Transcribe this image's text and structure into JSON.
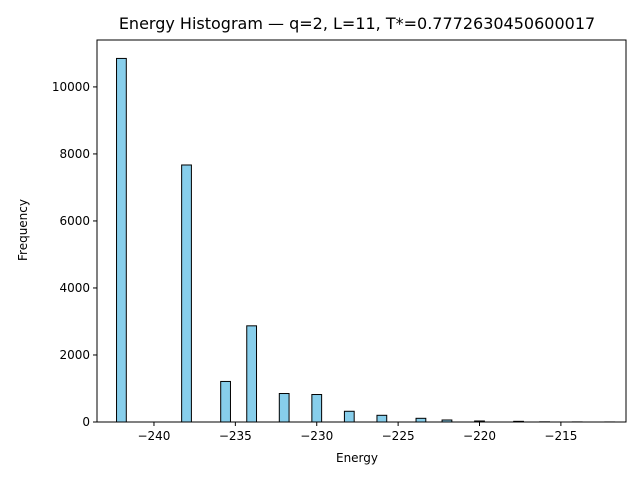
{
  "chart_data": {
    "type": "bar",
    "title": "Energy Histogram — q=2, L=11, T*=0.7772630450600017",
    "xlabel": "Energy",
    "ylabel": "Frequency",
    "xlim": [
      -243.5,
      -211
    ],
    "ylim": [
      0,
      11400
    ],
    "bar_color": "#87ceeb",
    "edge_color": "#000000",
    "bin_width": 0.6,
    "x_ticks": [
      {
        "value": -240,
        "label": "−240"
      },
      {
        "value": -235,
        "label": "−235"
      },
      {
        "value": -230,
        "label": "−230"
      },
      {
        "value": -225,
        "label": "−225"
      },
      {
        "value": -220,
        "label": "−220"
      },
      {
        "value": -215,
        "label": "−215"
      }
    ],
    "y_ticks": [
      {
        "value": 0,
        "label": "0"
      },
      {
        "value": 2000,
        "label": "2000"
      },
      {
        "value": 4000,
        "label": "4000"
      },
      {
        "value": 6000,
        "label": "6000"
      },
      {
        "value": 8000,
        "label": "8000"
      },
      {
        "value": 10000,
        "label": "10000"
      }
    ],
    "bins": [
      {
        "x": -242,
        "value": 10850
      },
      {
        "x": -238,
        "value": 7670
      },
      {
        "x": -235.6,
        "value": 1210
      },
      {
        "x": -234,
        "value": 2870
      },
      {
        "x": -232,
        "value": 850
      },
      {
        "x": -230,
        "value": 820
      },
      {
        "x": -228,
        "value": 320
      },
      {
        "x": -226,
        "value": 200
      },
      {
        "x": -223.6,
        "value": 110
      },
      {
        "x": -222,
        "value": 60
      },
      {
        "x": -220,
        "value": 30
      },
      {
        "x": -217.6,
        "value": 20
      },
      {
        "x": -216,
        "value": 5
      },
      {
        "x": -214,
        "value": 3
      },
      {
        "x": -212,
        "value": 2
      }
    ]
  }
}
